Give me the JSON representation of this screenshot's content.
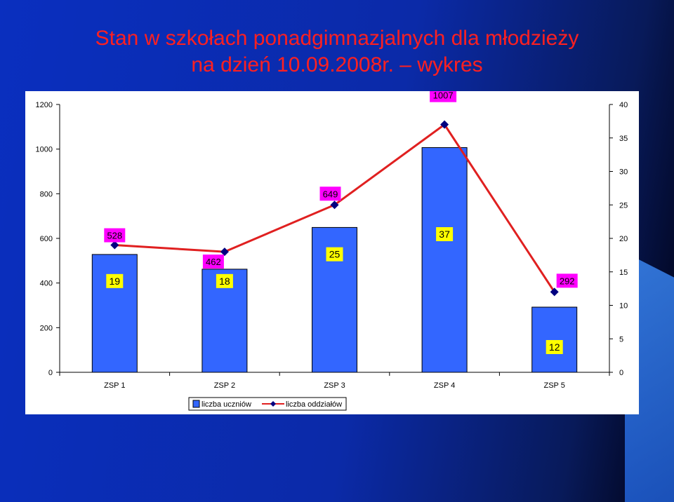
{
  "title_line1": "Stan w szkołach ponadgimnazjalnych dla młodzieży",
  "title_line2": "na dzień 10.09.2008r. – wykres",
  "chart_data": {
    "type": "bar",
    "categories": [
      "ZSP 1",
      "ZSP 2",
      "ZSP 3",
      "ZSP 4",
      "ZSP 5"
    ],
    "series": [
      {
        "name": "liczba uczniów",
        "type": "bar",
        "axis": "left",
        "values": [
          528,
          462,
          649,
          1007,
          292
        ],
        "color": "#3366ff"
      },
      {
        "name": "liczba oddziałów",
        "type": "line",
        "axis": "right",
        "values": [
          19,
          18,
          25,
          37,
          12
        ],
        "color": "#e02020",
        "marker_color": "#000080"
      }
    ],
    "ylim_left": [
      0,
      1200
    ],
    "yticks_left": [
      0,
      200,
      400,
      600,
      800,
      1000,
      1200
    ],
    "ylim_right": [
      0,
      40
    ],
    "yticks_right": [
      0,
      5,
      10,
      15,
      20,
      25,
      30,
      35,
      40
    ],
    "legend_position": "bottom-left",
    "grid": false,
    "bar_label_bg": "#ff00ff",
    "line_label_bg": "#ffff00"
  }
}
